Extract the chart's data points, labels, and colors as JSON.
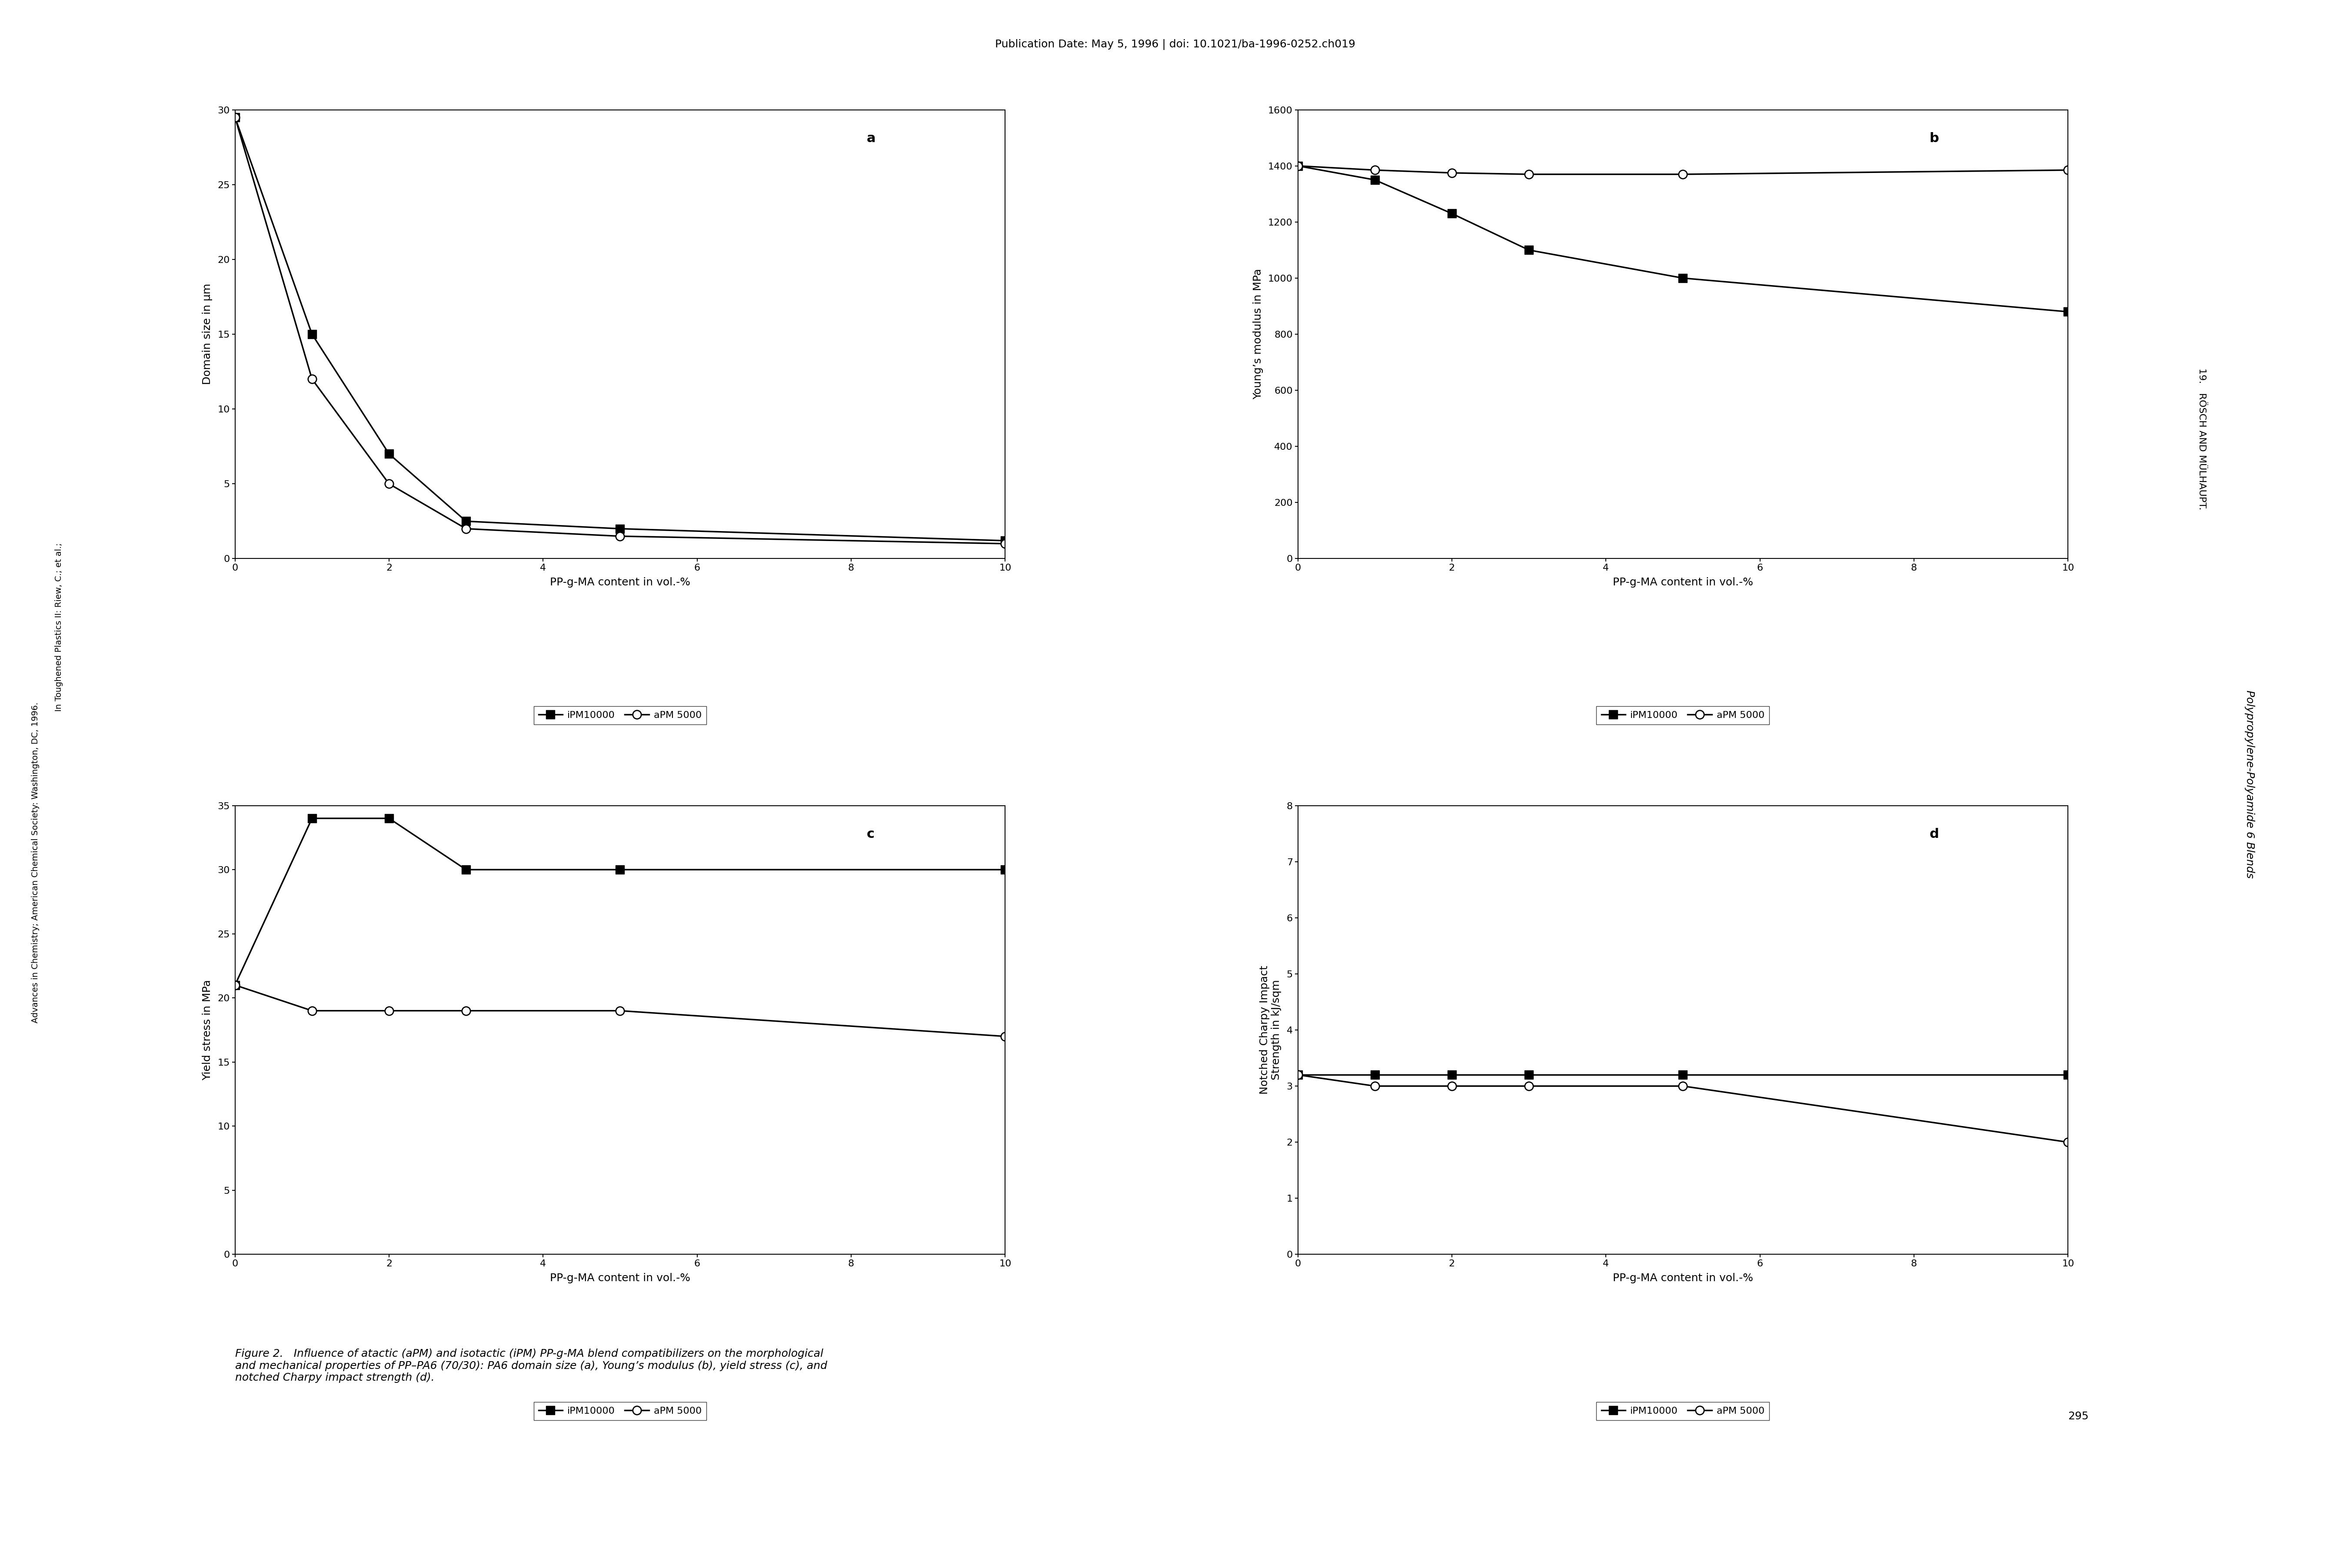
{
  "title": "Publication Date: May 5, 1996 | doi: 10.1021/ba-1996-0252.ch019",
  "title_fontsize": 18,
  "panel_a_label": "a",
  "panel_b_label": "b",
  "panel_c_label": "c",
  "panel_d_label": "d",
  "xlabel": "PP-g-MA content in vol.-%",
  "xlabel_fontsize": 18,
  "ylabel_a": "Domain size in μm",
  "ylabel_b": "Young’s modulus in MPa",
  "ylabel_c": "Yield stress in MPa",
  "ylabel_d": "Notched Charpy Impact\nStrength in kJ/sqm",
  "ylabel_fontsize": 18,
  "legend_label_square": "iPM10000",
  "legend_label_circle": "aPM 5000",
  "iPM10000_x": [
    0,
    1,
    2,
    3,
    5,
    10
  ],
  "aPM5000_x": [
    0,
    1,
    2,
    3,
    5,
    10
  ],
  "panel_a_iPM": [
    29.5,
    15.0,
    7.0,
    2.5,
    2.0,
    1.2
  ],
  "panel_a_aPM": [
    29.5,
    12.0,
    5.0,
    2.0,
    1.5,
    1.0
  ],
  "panel_b_iPM": [
    1400,
    1350,
    1230,
    1100,
    1000,
    880
  ],
  "panel_b_aPM": [
    1400,
    1385,
    1375,
    1370,
    1370,
    1385
  ],
  "panel_c_iPM": [
    21,
    34,
    34,
    30,
    30,
    30
  ],
  "panel_c_aPM": [
    21,
    19,
    19,
    19,
    19,
    17
  ],
  "panel_d_iPM": [
    3.2,
    3.2,
    3.2,
    3.2,
    3.2,
    3.2
  ],
  "panel_d_aPM": [
    3.2,
    3.0,
    3.0,
    3.0,
    3.0,
    2.0
  ],
  "panel_a_ylim": [
    0,
    30
  ],
  "panel_a_yticks": [
    0,
    5,
    10,
    15,
    20,
    25,
    30
  ],
  "panel_b_ylim": [
    0,
    1600
  ],
  "panel_b_yticks": [
    0,
    200,
    400,
    600,
    800,
    1000,
    1200,
    1400,
    1600
  ],
  "panel_c_ylim": [
    0,
    35
  ],
  "panel_c_yticks": [
    0,
    5,
    10,
    15,
    20,
    25,
    30,
    35
  ],
  "panel_d_ylim": [
    0,
    8
  ],
  "panel_d_yticks": [
    0,
    1,
    2,
    3,
    4,
    5,
    6,
    7,
    8
  ],
  "xlim": [
    0,
    10
  ],
  "xticks": [
    0,
    2,
    4,
    6,
    8,
    10
  ],
  "line_color": "#000000",
  "marker_square": "s",
  "marker_circle": "o",
  "marker_size": 14,
  "line_width": 2.5,
  "background_color": "#ffffff",
  "right_text_top": "19.   RÖSCH AND MÜLHAUPT.",
  "right_text_bottom": "Polypropylene-Polyamide 6 Blends",
  "left_text": "Advances in Chemistry; American Chemical Society: Washington, DC, 1996.",
  "left_text2": "In Toughened Plastics II: Riew, C.; et al.;",
  "caption": "Figure 2.   Influence of atactic (aPM) and isotactic (iPM) PP-g-MA blend compatibilizers on the morphological\nand mechanical properties of PP–PA6 (70/30): PA6 domain size (a), Young’s modulus (b), yield stress (c), and\nnotched Charpy impact strength (d).",
  "caption_fontsize": 18,
  "page_num": "295"
}
